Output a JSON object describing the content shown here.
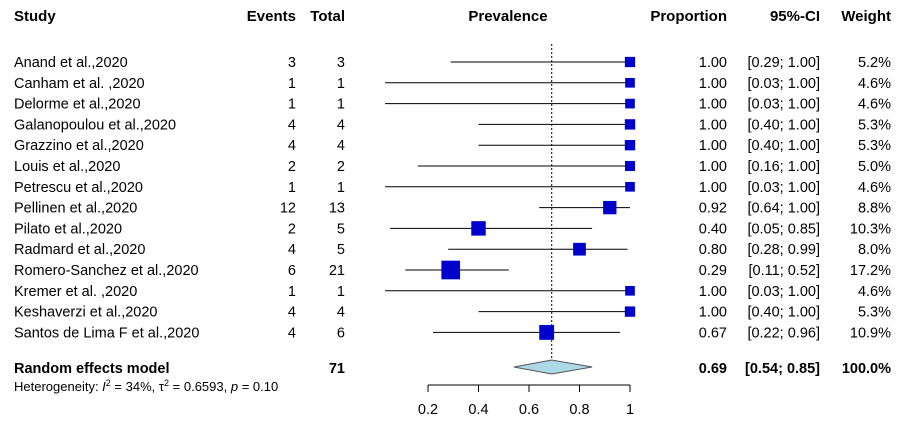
{
  "columns": {
    "study": "Study",
    "events": "Events",
    "total": "Total",
    "plot": "Prevalence",
    "proportion": "Proportion",
    "ci": "95%-CI",
    "weight": "Weight"
  },
  "chart_data": {
    "type": "forest",
    "xlim": [
      0.2,
      1
    ],
    "ticks": [
      "0.2",
      "0.4",
      "0.6",
      "0.8",
      "1"
    ],
    "tick_values": [
      0.2,
      0.4,
      0.6,
      0.8,
      1.0
    ],
    "pooled_reference": 0.69,
    "studies": [
      {
        "name": "Anand et al.,2020",
        "events": "3",
        "total": "3",
        "prop": 1.0,
        "lo": 0.29,
        "hi": 1.0,
        "prop_text": "1.00",
        "ci_text": "[0.29; 1.00]",
        "weight_text": "5.2%",
        "weight": 5.2
      },
      {
        "name": "Canham et al. ,2020",
        "events": "1",
        "total": "1",
        "prop": 1.0,
        "lo": 0.03,
        "hi": 1.0,
        "prop_text": "1.00",
        "ci_text": "[0.03; 1.00]",
        "weight_text": "4.6%",
        "weight": 4.6
      },
      {
        "name": "Delorme et al.,2020",
        "events": "1",
        "total": "1",
        "prop": 1.0,
        "lo": 0.03,
        "hi": 1.0,
        "prop_text": "1.00",
        "ci_text": "[0.03; 1.00]",
        "weight_text": "4.6%",
        "weight": 4.6
      },
      {
        "name": "Galanopoulou et al.,2020",
        "events": "4",
        "total": "4",
        "prop": 1.0,
        "lo": 0.4,
        "hi": 1.0,
        "prop_text": "1.00",
        "ci_text": "[0.40; 1.00]",
        "weight_text": "5.3%",
        "weight": 5.3
      },
      {
        "name": "Grazzino et al.,2020",
        "events": "4",
        "total": "4",
        "prop": 1.0,
        "lo": 0.4,
        "hi": 1.0,
        "prop_text": "1.00",
        "ci_text": "[0.40; 1.00]",
        "weight_text": "5.3%",
        "weight": 5.3
      },
      {
        "name": "Louis et al.,2020",
        "events": "2",
        "total": "2",
        "prop": 1.0,
        "lo": 0.16,
        "hi": 1.0,
        "prop_text": "1.00",
        "ci_text": "[0.16; 1.00]",
        "weight_text": "5.0%",
        "weight": 5.0
      },
      {
        "name": "Petrescu et al.,2020",
        "events": "1",
        "total": "1",
        "prop": 1.0,
        "lo": 0.03,
        "hi": 1.0,
        "prop_text": "1.00",
        "ci_text": "[0.03; 1.00]",
        "weight_text": "4.6%",
        "weight": 4.6
      },
      {
        "name": "Pellinen et al.,2020",
        "events": "12",
        "total": "13",
        "prop": 0.92,
        "lo": 0.64,
        "hi": 1.0,
        "prop_text": "0.92",
        "ci_text": "[0.64; 1.00]",
        "weight_text": "8.8%",
        "weight": 8.8
      },
      {
        "name": "Pilato et al.,2020",
        "events": "2",
        "total": "5",
        "prop": 0.4,
        "lo": 0.05,
        "hi": 0.85,
        "prop_text": "0.40",
        "ci_text": "[0.05; 0.85]",
        "weight_text": "10.3%",
        "weight": 10.3
      },
      {
        "name": "Radmard et al.,2020",
        "events": "4",
        "total": "5",
        "prop": 0.8,
        "lo": 0.28,
        "hi": 0.99,
        "prop_text": "0.80",
        "ci_text": "[0.28; 0.99]",
        "weight_text": "8.0%",
        "weight": 8.0
      },
      {
        "name": "Romero-Sanchez et al.,2020",
        "events": "6",
        "total": "21",
        "prop": 0.29,
        "lo": 0.11,
        "hi": 0.52,
        "prop_text": "0.29",
        "ci_text": "[0.11; 0.52]",
        "weight_text": "17.2%",
        "weight": 17.2
      },
      {
        "name": "Kremer et al. ,2020",
        "events": "1",
        "total": "1",
        "prop": 1.0,
        "lo": 0.03,
        "hi": 1.0,
        "prop_text": "1.00",
        "ci_text": "[0.03; 1.00]",
        "weight_text": "4.6%",
        "weight": 4.6
      },
      {
        "name": "Keshaverzi et al.,2020",
        "events": "4",
        "total": "4",
        "prop": 1.0,
        "lo": 0.4,
        "hi": 1.0,
        "prop_text": "1.00",
        "ci_text": "[0.40; 1.00]",
        "weight_text": "5.3%",
        "weight": 5.3
      },
      {
        "name": "Santos de Lima F et al.,2020",
        "events": "4",
        "total": "6",
        "prop": 0.67,
        "lo": 0.22,
        "hi": 0.96,
        "prop_text": "0.67",
        "ci_text": "[0.22; 0.96]",
        "weight_text": "10.9%",
        "weight": 10.9
      }
    ],
    "summary": {
      "name": "Random effects model",
      "total": "71",
      "prop": 0.69,
      "lo": 0.54,
      "hi": 0.85,
      "prop_text": "0.69",
      "ci_text": "[0.54; 0.85]",
      "weight_text": "100.0%"
    },
    "heterogeneity": {
      "prefix": "Heterogeneity: ",
      "i2_symbol": "I",
      "i2_sup": "2",
      "i2_value": " = 34%, ",
      "tau2_symbol": "τ",
      "tau2_sup": "2",
      "tau2_value": " = 0.6593, ",
      "p_symbol": "p",
      "p_value": " = 0.10"
    },
    "colors": {
      "marker": "#0000cc",
      "diamond_fill": "#add8e6",
      "line": "#000000"
    }
  }
}
